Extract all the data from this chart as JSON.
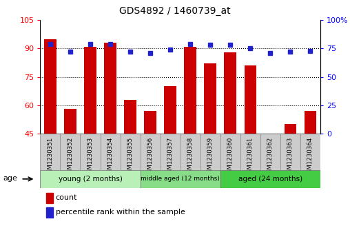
{
  "title": "GDS4892 / 1460739_at",
  "samples": [
    "GSM1230351",
    "GSM1230352",
    "GSM1230353",
    "GSM1230354",
    "GSM1230355",
    "GSM1230356",
    "GSM1230357",
    "GSM1230358",
    "GSM1230359",
    "GSM1230360",
    "GSM1230361",
    "GSM1230362",
    "GSM1230363",
    "GSM1230364"
  ],
  "counts": [
    95,
    58,
    91,
    93,
    63,
    57,
    70,
    91,
    82,
    88,
    81,
    45,
    50,
    57
  ],
  "percentiles": [
    79,
    72,
    79,
    79,
    72,
    71,
    74,
    79,
    78,
    78,
    75,
    71,
    72,
    73
  ],
  "ylim_left": [
    45,
    105
  ],
  "ylim_right": [
    0,
    100
  ],
  "yticks_left": [
    45,
    60,
    75,
    90,
    105
  ],
  "yticks_right": [
    0,
    25,
    50,
    75,
    100
  ],
  "bar_color": "#cc0000",
  "dot_color": "#2222cc",
  "groups": [
    {
      "label": "young (2 months)",
      "start": 0,
      "end": 5,
      "color": "#b8f0b8"
    },
    {
      "label": "middle aged (12 months)",
      "start": 5,
      "end": 9,
      "color": "#88dd88"
    },
    {
      "label": "aged (24 months)",
      "start": 9,
      "end": 14,
      "color": "#44cc44"
    }
  ],
  "age_label": "age",
  "legend_count": "count",
  "legend_percentile": "percentile rank within the sample",
  "grid_yticks": [
    60,
    75,
    90
  ],
  "bar_width": 0.6,
  "right_tick_labels": [
    "0",
    "25",
    "50",
    "75",
    "100%"
  ]
}
